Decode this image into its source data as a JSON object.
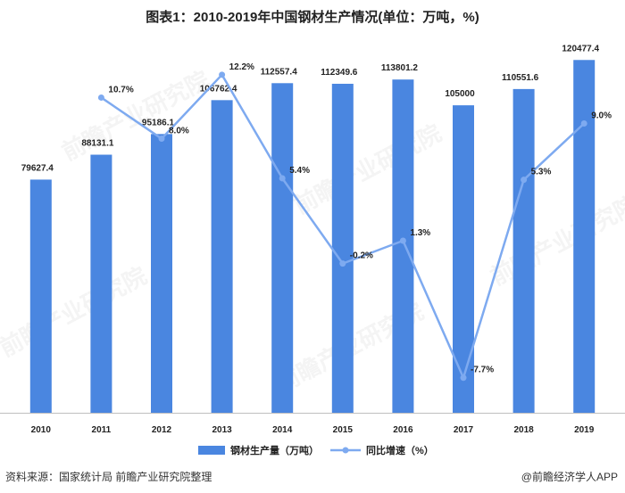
{
  "title": "图表1：2010-2019年中国钢材生产情况(单位：万吨，%)",
  "chart_data": {
    "type": "bar+line",
    "title": "图表1：2010-2019年中国钢材生产情况(单位：万吨，%)",
    "categories": [
      "2010",
      "2011",
      "2012",
      "2013",
      "2014",
      "2015",
      "2016",
      "2017",
      "2018",
      "2019"
    ],
    "series": [
      {
        "name": "钢材生产量（万吨）",
        "type": "bar",
        "axis": "left",
        "values": [
          79627.4,
          88131.1,
          95186.1,
          106762.4,
          112557.4,
          112349.6,
          113801.2,
          105000,
          110551.6,
          120477.4
        ],
        "labels": [
          "79627.4",
          "88131.1",
          "95186.1",
          "106762.4",
          "112557.4",
          "112349.6",
          "113801.2",
          "105000",
          "110551.6",
          "120477.4"
        ]
      },
      {
        "name": "同比增速（%）",
        "type": "line",
        "axis": "right",
        "values": [
          null,
          10.7,
          8.0,
          12.2,
          5.4,
          -0.2,
          1.3,
          -7.7,
          5.3,
          9.0
        ],
        "labels": [
          "",
          "10.7%",
          "8.0%",
          "12.2%",
          "5.4%",
          "-0.2%",
          "1.3%",
          "-7.7%",
          "5.3%",
          "9.0%"
        ]
      }
    ],
    "ylim_left": [
      0,
      130000
    ],
    "ylim_right": [
      -10,
      15
    ],
    "grid": false,
    "legend": "bottom-center",
    "colors": {
      "bar": "#4a86e0",
      "line": "#7eaaf0"
    }
  },
  "footer": {
    "source": "资料来源：国家统计局 前瞻产业研究院整理",
    "credit": "@前瞻经济学人APP"
  },
  "watermark": "前瞻产业研究院"
}
